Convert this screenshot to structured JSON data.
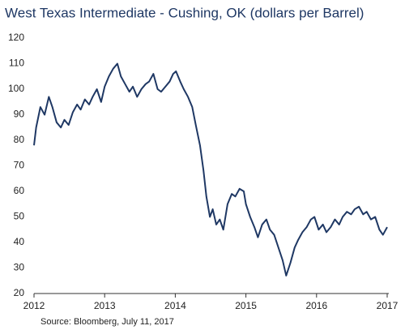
{
  "chart_data": {
    "type": "line",
    "title": "West Texas Intermediate - Cushing, OK (dollars per Barrel)",
    "source": "Source: Bloomberg, July 11, 2017",
    "x": [
      2012.0,
      2012.03,
      2012.09,
      2012.15,
      2012.21,
      2012.26,
      2012.32,
      2012.38,
      2012.43,
      2012.49,
      2012.55,
      2012.61,
      2012.66,
      2012.72,
      2012.78,
      2012.83,
      2012.89,
      2012.95,
      2013.0,
      2013.06,
      2013.12,
      2013.18,
      2013.23,
      2013.29,
      2013.35,
      2013.4,
      2013.46,
      2013.52,
      2013.58,
      2013.63,
      2013.69,
      2013.75,
      2013.8,
      2013.86,
      2013.92,
      2013.97,
      2014.01,
      2014.07,
      2014.12,
      2014.18,
      2014.24,
      2014.29,
      2014.35,
      2014.4,
      2014.44,
      2014.49,
      2014.53,
      2014.58,
      2014.63,
      2014.68,
      2014.74,
      2014.8,
      2014.85,
      2014.91,
      2014.97,
      2015.0,
      2015.06,
      2015.12,
      2015.17,
      2015.23,
      2015.29,
      2015.34,
      2015.4,
      2015.46,
      2015.52,
      2015.57,
      2015.63,
      2015.69,
      2015.74,
      2015.8,
      2015.86,
      2015.92,
      2015.97,
      2016.03,
      2016.09,
      2016.14,
      2016.2,
      2016.26,
      2016.32,
      2016.37,
      2016.43,
      2016.49,
      2016.54,
      2016.6,
      2016.66,
      2016.71,
      2016.77,
      2016.83,
      2016.89,
      2016.94,
      2017.0
    ],
    "series": [
      {
        "color": "#1f3864",
        "values": [
          78,
          85,
          93,
          90,
          97,
          93,
          87,
          85,
          88,
          86,
          91,
          94,
          92,
          96,
          94,
          97,
          100,
          95,
          101,
          105,
          108,
          110,
          105,
          102,
          99,
          101,
          97,
          100,
          102,
          103,
          106,
          100,
          99,
          101,
          103,
          106,
          107,
          103,
          100,
          97,
          93,
          86,
          78,
          68,
          58,
          50,
          53,
          47,
          49,
          45,
          55,
          59,
          58,
          61,
          60,
          55,
          50,
          46,
          42,
          47,
          49,
          45,
          43,
          38,
          33,
          27,
          32,
          38,
          41,
          44,
          46,
          49,
          50,
          45,
          47,
          44,
          46,
          49,
          47,
          50,
          52,
          51,
          53,
          54,
          51,
          52,
          49,
          50,
          45,
          43,
          46
        ]
      }
    ],
    "xlim": [
      2012,
      2017
    ],
    "xticks": [
      2012,
      2013,
      2014,
      2015,
      2016,
      2017
    ],
    "ylim": [
      20,
      120
    ],
    "yticks": [
      20,
      30,
      40,
      50,
      60,
      70,
      80,
      90,
      100,
      110,
      120
    ],
    "grid": false
  }
}
